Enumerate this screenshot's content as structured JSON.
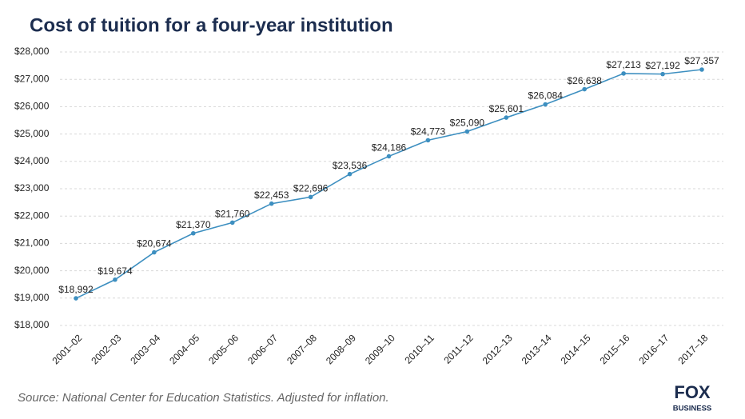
{
  "chart_data": {
    "type": "line",
    "title": "Cost of tuition for a four-year institution",
    "categories": [
      "2001–02",
      "2002–03",
      "2003–04",
      "2004–05",
      "2005–06",
      "2006–07",
      "2007–08",
      "2008–09",
      "2009–10",
      "2010–11",
      "2011–12",
      "2012–13",
      "2013–14",
      "2014–15",
      "2015–16",
      "2016–17",
      "2017–18"
    ],
    "values": [
      18992,
      19674,
      20674,
      21370,
      21760,
      22453,
      22696,
      23536,
      24186,
      24773,
      25090,
      25601,
      26084,
      26638,
      27213,
      27192,
      27357
    ],
    "value_labels": [
      "$18,992",
      "$19,674",
      "$20,674",
      "$21,370",
      "$21,760",
      "$22,453",
      "$22,696",
      "$23,536",
      "$24,186",
      "$24,773",
      "$25,090",
      "$25,601",
      "$26,084",
      "$26,638",
      "$27,213",
      "$27,192",
      "$27,357"
    ],
    "color": "#3d8fc0",
    "ylim": [
      18000,
      28000
    ],
    "yticks": [
      {
        "value": 18000,
        "label": "$18,000"
      },
      {
        "value": 19000,
        "label": "$19,000"
      },
      {
        "value": 20000,
        "label": "$20,000"
      },
      {
        "value": 21000,
        "label": "$21,000"
      },
      {
        "value": 22000,
        "label": "$22,000"
      },
      {
        "value": 23000,
        "label": "$23,000"
      },
      {
        "value": 24000,
        "label": "$24,000"
      },
      {
        "value": 25000,
        "label": "$25,000"
      },
      {
        "value": 26000,
        "label": "$26,000"
      },
      {
        "value": 27000,
        "label": "$27,000"
      },
      {
        "value": 28000,
        "label": "$28,000"
      }
    ],
    "grid": true,
    "source": "Source: National Center for Education Statistics. Adjusted for inflation.",
    "logo": {
      "top": "FOX",
      "bottom": "BUSINESS"
    }
  }
}
